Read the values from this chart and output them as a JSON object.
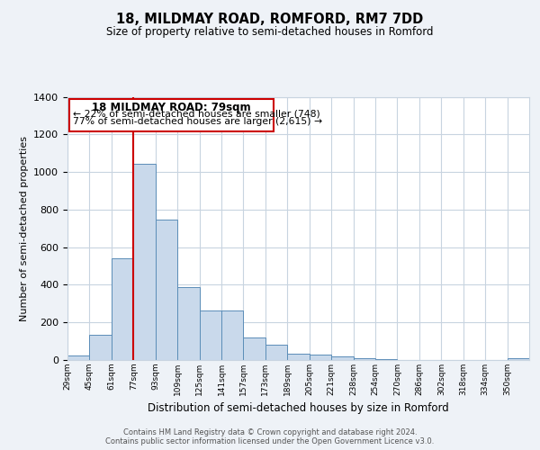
{
  "title": "18, MILDMAY ROAD, ROMFORD, RM7 7DD",
  "subtitle": "Size of property relative to semi-detached houses in Romford",
  "xlabel": "Distribution of semi-detached houses by size in Romford",
  "ylabel": "Number of semi-detached properties",
  "bin_labels": [
    "29sqm",
    "45sqm",
    "61sqm",
    "77sqm",
    "93sqm",
    "109sqm",
    "125sqm",
    "141sqm",
    "157sqm",
    "173sqm",
    "189sqm",
    "205sqm",
    "221sqm",
    "238sqm",
    "254sqm",
    "270sqm",
    "286sqm",
    "302sqm",
    "318sqm",
    "334sqm",
    "350sqm"
  ],
  "bar_heights": [
    25,
    135,
    540,
    1045,
    748,
    390,
    265,
    265,
    120,
    80,
    35,
    30,
    20,
    10,
    5,
    0,
    0,
    0,
    0,
    0,
    10
  ],
  "bar_color": "#c9d9eb",
  "bar_edge_color": "#5b8db8",
  "property_line_x": 3,
  "bin_edges": [
    0,
    1,
    2,
    3,
    4,
    5,
    6,
    7,
    8,
    9,
    10,
    11,
    12,
    13,
    14,
    15,
    16,
    17,
    18,
    19,
    20,
    21
  ],
  "annotation_title": "18 MILDMAY ROAD: 79sqm",
  "annotation_line1": "← 22% of semi-detached houses are smaller (748)",
  "annotation_line2": "77% of semi-detached houses are larger (2,615) →",
  "annotation_box_color": "#ffffff",
  "annotation_box_edge": "#cc0000",
  "red_line_color": "#cc0000",
  "ylim": [
    0,
    1400
  ],
  "yticks": [
    0,
    200,
    400,
    600,
    800,
    1000,
    1200,
    1400
  ],
  "footer1": "Contains HM Land Registry data © Crown copyright and database right 2024.",
  "footer2": "Contains public sector information licensed under the Open Government Licence v3.0.",
  "background_color": "#eef2f7",
  "plot_bg_color": "#ffffff",
  "grid_color": "#c8d4e0"
}
